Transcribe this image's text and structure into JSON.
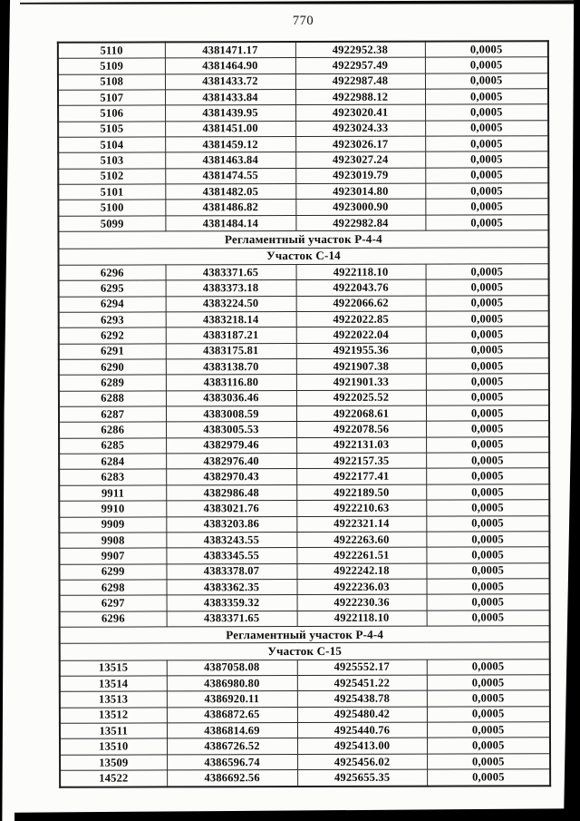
{
  "page": {
    "number": "770"
  },
  "table": {
    "rows": [
      {
        "type": "data",
        "cells": [
          "5110",
          "4381471.17",
          "4922952.38",
          "0,0005"
        ]
      },
      {
        "type": "data",
        "cells": [
          "5109",
          "4381464.90",
          "4922957.49",
          "0,0005"
        ]
      },
      {
        "type": "data",
        "cells": [
          "5108",
          "4381433.72",
          "4922987.48",
          "0,0005"
        ]
      },
      {
        "type": "data",
        "cells": [
          "5107",
          "4381433.84",
          "4922988.12",
          "0,0005"
        ]
      },
      {
        "type": "data",
        "cells": [
          "5106",
          "4381439.95",
          "4923020.41",
          "0,0005"
        ]
      },
      {
        "type": "data",
        "cells": [
          "5105",
          "4381451.00",
          "4923024.33",
          "0,0005"
        ]
      },
      {
        "type": "data",
        "cells": [
          "5104",
          "4381459.12",
          "4923026.17",
          "0,0005"
        ]
      },
      {
        "type": "data",
        "cells": [
          "5103",
          "4381463.84",
          "4923027.24",
          "0,0005"
        ]
      },
      {
        "type": "data",
        "cells": [
          "5102",
          "4381474.55",
          "4923019.79",
          "0,0005"
        ]
      },
      {
        "type": "data",
        "cells": [
          "5101",
          "4381482.05",
          "4923014.80",
          "0,0005"
        ]
      },
      {
        "type": "data",
        "cells": [
          "5100",
          "4381486.82",
          "4923000.90",
          "0,0005"
        ]
      },
      {
        "type": "data",
        "cells": [
          "5099",
          "4381484.14",
          "4922982.84",
          "0,0005"
        ]
      },
      {
        "type": "section",
        "text": "Регламентный участок Р-4-4"
      },
      {
        "type": "section",
        "text": "Участок С-14"
      },
      {
        "type": "data",
        "cells": [
          "6296",
          "4383371.65",
          "4922118.10",
          "0,0005"
        ]
      },
      {
        "type": "data",
        "cells": [
          "6295",
          "4383373.18",
          "4922043.76",
          "0,0005"
        ]
      },
      {
        "type": "data",
        "cells": [
          "6294",
          "4383224.50",
          "4922066.62",
          "0,0005"
        ]
      },
      {
        "type": "data",
        "cells": [
          "6293",
          "4383218.14",
          "4922022.85",
          "0,0005"
        ]
      },
      {
        "type": "data",
        "cells": [
          "6292",
          "4383187.21",
          "4922022.04",
          "0,0005"
        ]
      },
      {
        "type": "data",
        "cells": [
          "6291",
          "4383175.81",
          "4921955.36",
          "0,0005"
        ]
      },
      {
        "type": "data",
        "cells": [
          "6290",
          "4383138.70",
          "4921907.38",
          "0,0005"
        ]
      },
      {
        "type": "data",
        "cells": [
          "6289",
          "4383116.80",
          "4921901.33",
          "0,0005"
        ]
      },
      {
        "type": "data",
        "cells": [
          "6288",
          "4383036.46",
          "4922025.52",
          "0,0005"
        ]
      },
      {
        "type": "data",
        "cells": [
          "6287",
          "4383008.59",
          "4922068.61",
          "0,0005"
        ]
      },
      {
        "type": "data",
        "cells": [
          "6286",
          "4383005.53",
          "4922078.56",
          "0,0005"
        ]
      },
      {
        "type": "data",
        "cells": [
          "6285",
          "4382979.46",
          "4922131.03",
          "0,0005"
        ]
      },
      {
        "type": "data",
        "cells": [
          "6284",
          "4382976.40",
          "4922157.35",
          "0,0005"
        ]
      },
      {
        "type": "data",
        "cells": [
          "6283",
          "4382970.43",
          "4922177.41",
          "0,0005"
        ]
      },
      {
        "type": "data",
        "cells": [
          "9911",
          "4382986.48",
          "4922189.50",
          "0,0005"
        ]
      },
      {
        "type": "data",
        "cells": [
          "9910",
          "4383021.76",
          "4922210.63",
          "0,0005"
        ]
      },
      {
        "type": "data",
        "cells": [
          "9909",
          "4383203.86",
          "4922321.14",
          "0,0005"
        ]
      },
      {
        "type": "data",
        "cells": [
          "9908",
          "4383243.55",
          "4922263.60",
          "0,0005"
        ]
      },
      {
        "type": "data",
        "cells": [
          "9907",
          "4383345.55",
          "4922261.51",
          "0,0005"
        ]
      },
      {
        "type": "data",
        "cells": [
          "6299",
          "4383378.07",
          "4922242.18",
          "0,0005"
        ]
      },
      {
        "type": "data",
        "cells": [
          "6298",
          "4383362.35",
          "4922236.03",
          "0,0005"
        ]
      },
      {
        "type": "data",
        "cells": [
          "6297",
          "4383359.32",
          "4922230.36",
          "0,0005"
        ]
      },
      {
        "type": "data",
        "cells": [
          "6296",
          "4383371.65",
          "4922118.10",
          "0,0005"
        ]
      },
      {
        "type": "section",
        "text": "Регламентный участок Р-4-4"
      },
      {
        "type": "section",
        "text": "Участок С-15"
      },
      {
        "type": "data",
        "cells": [
          "13515",
          "4387058.08",
          "4925552.17",
          "0,0005"
        ]
      },
      {
        "type": "data",
        "cells": [
          "13514",
          "4386980.80",
          "4925451.22",
          "0,0005"
        ]
      },
      {
        "type": "data",
        "cells": [
          "13513",
          "4386920.11",
          "4925438.78",
          "0,0005"
        ]
      },
      {
        "type": "data",
        "cells": [
          "13512",
          "4386872.65",
          "4925480.42",
          "0,0005"
        ]
      },
      {
        "type": "data",
        "cells": [
          "13511",
          "4386814.69",
          "4925440.76",
          "0,0005"
        ]
      },
      {
        "type": "data",
        "cells": [
          "13510",
          "4386726.52",
          "4925413.00",
          "0,0005"
        ]
      },
      {
        "type": "data",
        "cells": [
          "13509",
          "4386596.74",
          "4925456.02",
          "0,0005"
        ]
      },
      {
        "type": "data",
        "cells": [
          "14522",
          "4386692.56",
          "4925655.35",
          "0,0005"
        ]
      }
    ]
  }
}
